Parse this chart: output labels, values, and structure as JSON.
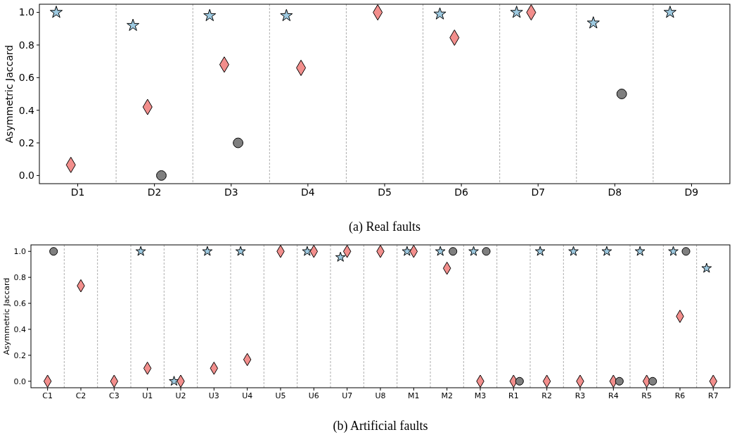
{
  "chart_data": [
    {
      "type": "scatter",
      "title": "(a) Real faults",
      "ylabel": "Asymmetric Jaccard",
      "categories": [
        "D1",
        "D2",
        "D3",
        "D4",
        "D5",
        "D6",
        "D7",
        "D8",
        "D9"
      ],
      "ylim": [
        -0.05,
        1.05
      ],
      "yticks": [
        {
          "value": 0,
          "label": "0.0"
        },
        {
          "value": 0.2,
          "label": "0.2"
        },
        {
          "value": 0.4,
          "label": "0.4"
        },
        {
          "value": 0.6,
          "label": "0.6"
        },
        {
          "value": 0.8,
          "label": "0.8"
        },
        {
          "value": 1,
          "label": "1.0"
        }
      ],
      "grid": "x",
      "series": [
        {
          "color": "#9ecae1",
          "marker": "star",
          "values": [
            1.0,
            0.92,
            0.98,
            0.98,
            null,
            0.99,
            1.0,
            0.935,
            1.0
          ]
        },
        {
          "color": "#f28e8c",
          "marker": "diamond",
          "values": [
            0.065,
            0.42,
            0.68,
            0.66,
            1.0,
            0.845,
            1.0,
            null,
            null
          ]
        },
        {
          "color": "#7f7f7f",
          "marker": "circle",
          "values": [
            null,
            0.0,
            0.2,
            null,
            null,
            null,
            null,
            0.5,
            null
          ]
        }
      ]
    },
    {
      "type": "scatter",
      "title": "(b) Artificial faults",
      "ylabel": "Asymmetric Jaccard",
      "categories": [
        "C1",
        "C2",
        "C3",
        "U1",
        "U2",
        "U3",
        "U4",
        "U5",
        "U6",
        "U7",
        "U8",
        "M1",
        "M2",
        "M3",
        "R1",
        "R2",
        "R3",
        "R4",
        "R5",
        "R6",
        "R7"
      ],
      "ylim": [
        -0.05,
        1.05
      ],
      "yticks": [
        {
          "value": 0,
          "label": "0.0"
        },
        {
          "value": 0.2,
          "label": "0.2"
        },
        {
          "value": 0.4,
          "label": "0.4"
        },
        {
          "value": 0.6,
          "label": "0.6"
        },
        {
          "value": 0.8,
          "label": "0.8"
        },
        {
          "value": 1,
          "label": "1.0"
        }
      ],
      "grid": "x",
      "series": [
        {
          "color": "#9ecae1",
          "marker": "star",
          "values": [
            null,
            null,
            null,
            1,
            0,
            1,
            1,
            null,
            1,
            0.955,
            null,
            1,
            1,
            1,
            null,
            1,
            1,
            1,
            1,
            1,
            0.87
          ]
        },
        {
          "color": "#f28e8c",
          "marker": "diamond",
          "values": [
            0,
            0.735,
            0,
            0.1,
            0,
            0.1,
            0.167,
            1,
            1,
            1,
            1,
            1,
            0.87,
            0,
            0,
            0,
            0,
            0,
            0,
            0.5,
            0
          ]
        },
        {
          "color": "#7f7f7f",
          "marker": "circle",
          "values": [
            1,
            null,
            null,
            null,
            null,
            null,
            null,
            null,
            null,
            null,
            null,
            null,
            1,
            1,
            0,
            null,
            null,
            0,
            0,
            1,
            null
          ]
        }
      ]
    }
  ]
}
